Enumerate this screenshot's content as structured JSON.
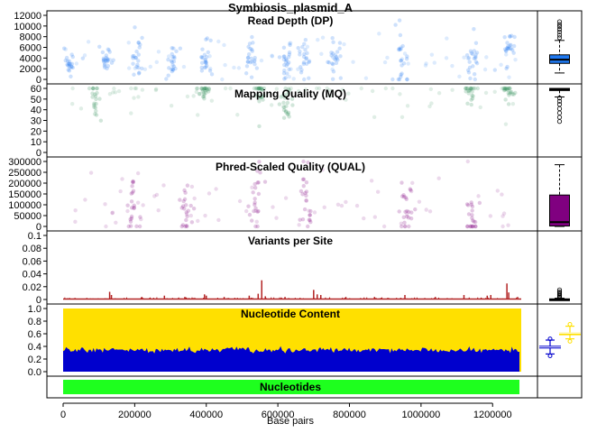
{
  "chart_data": {
    "title": "Symbiosis_plasmid_A",
    "xlabel": "Base pairs",
    "xlim": [
      0,
      1280000
    ],
    "x_ticks": [
      0,
      200000,
      400000,
      600000,
      800000,
      1000000,
      1200000
    ],
    "x_tick_labels": [
      "0",
      "200000",
      "400000",
      "600000",
      "800000",
      "1000000",
      "1200000"
    ],
    "panels": [
      {
        "key": "dp",
        "type": "scatter",
        "title": "Read Depth (DP)",
        "ylim": [
          0,
          12000
        ],
        "y_ticks": [
          0,
          2000,
          4000,
          6000,
          8000,
          10000,
          12000
        ],
        "color": "#1E78F0",
        "clusters": [
          [
            20000,
            3400,
            1400
          ],
          [
            120000,
            3500,
            900
          ],
          [
            205000,
            3800,
            1800
          ],
          [
            305000,
            3100,
            2000
          ],
          [
            395000,
            3800,
            1900
          ],
          [
            525000,
            4000,
            2200
          ],
          [
            625000,
            3400,
            2000
          ],
          [
            675000,
            3100,
            2400
          ],
          [
            760000,
            4500,
            1800
          ],
          [
            945000,
            4700,
            2600
          ],
          [
            1145000,
            3900,
            1800
          ],
          [
            1245000,
            5900,
            1700
          ]
        ],
        "boxplot": {
          "min": 1200,
          "q1": 3000,
          "median": 3700,
          "q3": 4600,
          "max": 7300,
          "outliers": [
            7800,
            8300,
            8900,
            9400,
            9900,
            10300,
            10800
          ],
          "fill": "#1E78F0"
        }
      },
      {
        "key": "mq",
        "type": "scatter",
        "title": "Mapping Quality (MQ)",
        "ylim": [
          0,
          60
        ],
        "y_ticks": [
          0,
          10,
          20,
          30,
          40,
          50,
          60
        ],
        "color": "#2E8B57",
        "clusters": [
          [
            90000,
            48,
            10
          ],
          [
            395000,
            58,
            4
          ],
          [
            550000,
            57,
            8
          ],
          [
            625000,
            45,
            14
          ],
          [
            1140000,
            57,
            6
          ],
          [
            1245000,
            58,
            4
          ]
        ],
        "boxplot": {
          "min": 52,
          "q1": 58,
          "median": 59,
          "q3": 60,
          "max": 60,
          "outliers": [
            51,
            48,
            45,
            41,
            37,
            33,
            29
          ],
          "fill": "#3CB371"
        }
      },
      {
        "key": "qual",
        "type": "scatter",
        "title": "Phred-Scaled Quality (QUAL)",
        "ylim": [
          0,
          300000
        ],
        "y_ticks": [
          0,
          50000,
          100000,
          150000,
          200000,
          250000,
          300000
        ],
        "color": "#800080",
        "clusters": [
          [
            195000,
            110000,
            80000
          ],
          [
            345000,
            80000,
            70000
          ],
          [
            540000,
            120000,
            90000
          ],
          [
            680000,
            110000,
            90000
          ],
          [
            960000,
            80000,
            70000
          ],
          [
            1140000,
            70000,
            80000
          ]
        ],
        "boxplot": {
          "min": 0,
          "q1": 2000,
          "median": 20000,
          "q3": 145000,
          "max": 285000,
          "outliers": [],
          "fill": "#800080"
        }
      },
      {
        "key": "vps",
        "type": "bar",
        "title": "Variants per Site",
        "ylim": [
          0,
          0.1
        ],
        "y_ticks": [
          0,
          0.02,
          0.04,
          0.06,
          0.08,
          0.1
        ],
        "color": "#B22222",
        "peaks": [
          [
            130000,
            0.012
          ],
          [
            135000,
            0.007
          ],
          [
            220000,
            0.004
          ],
          [
            283000,
            0.006
          ],
          [
            340000,
            0.004
          ],
          [
            395000,
            0.008
          ],
          [
            400000,
            0.006
          ],
          [
            450000,
            0.004
          ],
          [
            520000,
            0.006
          ],
          [
            545000,
            0.009
          ],
          [
            555000,
            0.03
          ],
          [
            565000,
            0.005
          ],
          [
            620000,
            0.004
          ],
          [
            700000,
            0.015
          ],
          [
            710000,
            0.008
          ],
          [
            720000,
            0.007
          ],
          [
            790000,
            0.004
          ],
          [
            870000,
            0.004
          ],
          [
            955000,
            0.007
          ],
          [
            1040000,
            0.004
          ],
          [
            1120000,
            0.007
          ],
          [
            1185000,
            0.006
          ],
          [
            1195000,
            0.007
          ],
          [
            1240000,
            0.025
          ],
          [
            1245000,
            0.011
          ],
          [
            1270000,
            0.004
          ]
        ],
        "boxplot": {
          "min": 0,
          "q1": 0,
          "median": 0,
          "q3": 0.001,
          "max": 0.002,
          "outliers": [
            0.003,
            0.004,
            0.006,
            0.008,
            0.01,
            0.012,
            0.015
          ],
          "fill": "#B22222"
        }
      },
      {
        "key": "nuc",
        "type": "area",
        "title": "Nucleotide Content",
        "ylim": [
          0,
          1
        ],
        "y_ticks": [
          0,
          0.2,
          0.4,
          0.6,
          0.8,
          1.0
        ],
        "y_tick_labels": [
          "0.0",
          "0.2",
          "0.4",
          "0.6",
          "0.8",
          "1.0"
        ],
        "series": [
          {
            "values_mean": 0.34,
            "color": "#0000CD",
            "boxplot": {
              "min": 0.28,
              "q1": 0.375,
              "median": 0.39,
              "q3": 0.41,
              "max": 0.5,
              "outliers": [
                0.25,
                0.52
              ]
            }
          },
          {
            "values_mean": 0.62,
            "color": "#FFE000",
            "boxplot": {
              "min": 0.52,
              "q1": 0.6,
              "median": 0.61,
              "q3": 0.62,
              "max": 0.72,
              "outliers": [
                0.48,
                0.75
              ]
            }
          }
        ],
        "fill_top": 1.0
      },
      {
        "key": "track",
        "type": "track",
        "title": "Nucleotides",
        "color": "#1EFF1E",
        "start": 0,
        "end": 1275000
      }
    ]
  }
}
